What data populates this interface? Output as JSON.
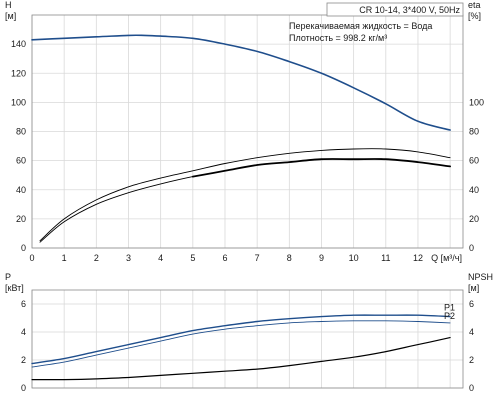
{
  "chart_data": [
    {
      "type": "line",
      "panel": "head-efficiency",
      "title": "CR 10-14, 3*400 V, 50Hz",
      "notes": [
        "Перекачиваемая жидкость = Вода",
        "Плотность = 998.2 кг/м³"
      ],
      "xlabel": "Q [м³/ч]",
      "x_ticks": [
        "0",
        "1",
        "2",
        "3",
        "4",
        "5",
        "6",
        "7",
        "8",
        "9",
        "10",
        "11",
        "12"
      ],
      "xlim": [
        0,
        13.4
      ],
      "ylabel_left": [
        "H",
        "[м]"
      ],
      "ylim_left": [
        0,
        160
      ],
      "yticks_left": [
        0,
        20,
        40,
        60,
        80,
        100,
        120,
        140
      ],
      "ylabel_right": [
        "eta",
        "[%]"
      ],
      "ylim_right": [
        0,
        160
      ],
      "yticks_right": [
        0,
        20,
        40,
        60,
        80,
        100
      ],
      "grid": true,
      "series": [
        {
          "axis": "left",
          "color": "#1f4e8c",
          "width": 1.6,
          "x": [
            0,
            1,
            2,
            3,
            3.5,
            4,
            5,
            6,
            7,
            8,
            9,
            10,
            11,
            12,
            13
          ],
          "y": [
            143,
            144,
            145,
            146,
            146,
            145.5,
            144,
            140,
            135,
            128,
            120,
            110,
            99,
            87,
            81
          ]
        },
        {
          "axis": "right",
          "color": "#000000",
          "width": 0.9,
          "x": [
            0.25,
            1,
            2,
            3,
            4,
            5,
            6,
            7,
            8,
            9,
            10,
            11,
            12,
            13
          ],
          "y": [
            5,
            20,
            33,
            42,
            48,
            53,
            58,
            62,
            65,
            67,
            68,
            68,
            66,
            62
          ]
        },
        {
          "axis": "right",
          "color": "#000000",
          "width": 0.9,
          "x": [
            0.25,
            1,
            2,
            3,
            4,
            5,
            6,
            7,
            8,
            9,
            10,
            11,
            12,
            13
          ],
          "y": [
            4,
            18,
            30,
            38,
            44,
            49,
            53,
            57,
            59,
            61,
            61,
            61,
            59,
            56
          ]
        },
        {
          "axis": "right",
          "color": "#000000",
          "width": 1.8,
          "x": [
            5,
            6,
            7,
            8,
            9,
            10,
            11,
            12,
            13
          ],
          "y": [
            49,
            53,
            57,
            59,
            61,
            61,
            61,
            59,
            56
          ]
        }
      ]
    },
    {
      "type": "line",
      "panel": "power-npsh",
      "xlim": [
        0,
        13.4
      ],
      "ylabel_left": [
        "P",
        "[кВт]"
      ],
      "ylim_left": [
        0,
        7
      ],
      "yticks_left": [
        0,
        2,
        4,
        6
      ],
      "ylabel_right": [
        "NPSH",
        "[м]"
      ],
      "ylim_right": [
        0,
        7
      ],
      "yticks_right": [
        0,
        2,
        4,
        6
      ],
      "grid": true,
      "series": [
        {
          "name": "P1",
          "axis": "left",
          "color": "#1f4e8c",
          "width": 1.4,
          "x": [
            0,
            1,
            2,
            3,
            4,
            5,
            6,
            7,
            8,
            9,
            10,
            11,
            12,
            13
          ],
          "y": [
            1.75,
            2.1,
            2.6,
            3.1,
            3.6,
            4.1,
            4.45,
            4.75,
            4.95,
            5.1,
            5.2,
            5.2,
            5.2,
            5.1
          ]
        },
        {
          "name": "P2",
          "axis": "left",
          "color": "#1f4e8c",
          "width": 0.9,
          "x": [
            0,
            1,
            2,
            3,
            4,
            5,
            6,
            7,
            8,
            9,
            10,
            11,
            12,
            13
          ],
          "y": [
            1.5,
            1.85,
            2.35,
            2.85,
            3.35,
            3.85,
            4.2,
            4.45,
            4.65,
            4.75,
            4.8,
            4.8,
            4.75,
            4.65
          ]
        },
        {
          "axis": "right",
          "color": "#000000",
          "width": 1.2,
          "x": [
            0,
            1,
            2,
            3,
            4,
            5,
            6,
            7,
            8,
            9,
            10,
            11,
            12,
            13
          ],
          "y": [
            0.6,
            0.6,
            0.65,
            0.75,
            0.9,
            1.05,
            1.2,
            1.35,
            1.6,
            1.9,
            2.2,
            2.6,
            3.1,
            3.6
          ]
        }
      ]
    }
  ]
}
